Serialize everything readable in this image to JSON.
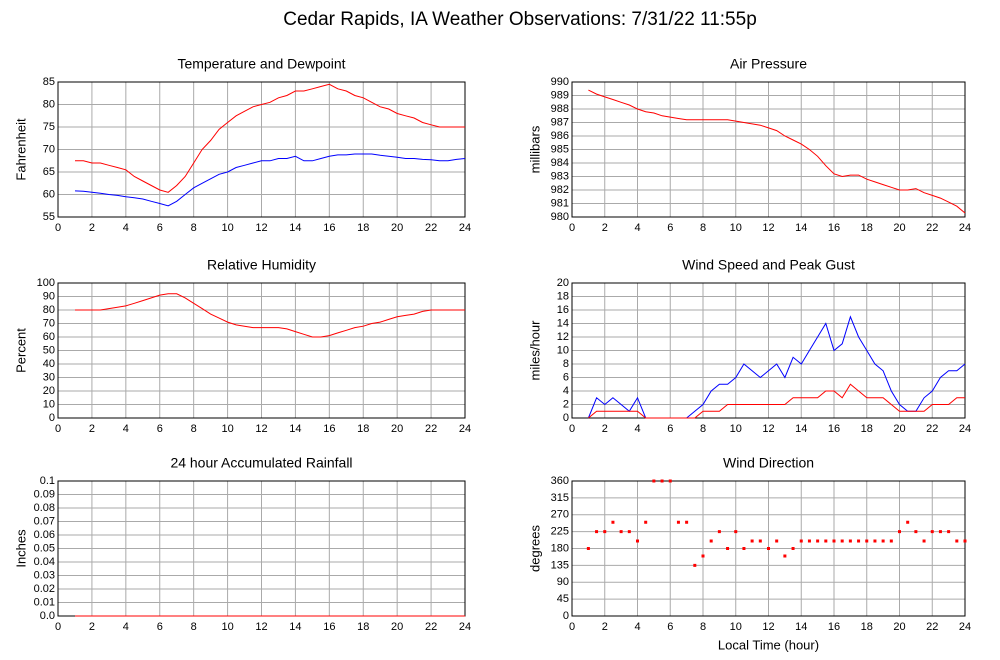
{
  "title": "Cedar Rapids, IA Weather Observations: 7/31/22 11:55p",
  "chart_data": [
    {
      "type": "line",
      "title": "Temperature and Dewpoint",
      "ylabel": "Fahrenheit",
      "xlim": [
        0,
        24
      ],
      "xticks": [
        0,
        2,
        4,
        6,
        8,
        10,
        12,
        14,
        16,
        18,
        20,
        22,
        24
      ],
      "ylim": [
        55,
        85
      ],
      "yticks": [
        55,
        60,
        65,
        70,
        75,
        80,
        85
      ],
      "grid": true,
      "x": [
        1,
        1.5,
        2,
        2.5,
        3,
        3.5,
        4,
        4.5,
        5,
        5.5,
        6,
        6.5,
        7,
        7.5,
        8,
        8.5,
        9,
        9.5,
        10,
        10.5,
        11,
        11.5,
        12,
        12.5,
        13,
        13.5,
        14,
        14.5,
        15,
        15.5,
        16,
        16.5,
        17,
        17.5,
        18,
        18.5,
        19,
        19.5,
        20,
        20.5,
        21,
        21.5,
        22,
        22.5,
        23,
        23.5,
        24
      ],
      "series": [
        {
          "color": "#ff0000",
          "values": [
            67.5,
            67.5,
            67,
            67,
            66.5,
            66,
            65.5,
            64,
            63,
            62,
            61,
            60.5,
            62,
            64,
            67,
            70,
            72,
            74.5,
            76,
            77.5,
            78.5,
            79.5,
            80,
            80.5,
            81.5,
            82,
            83,
            83,
            83.5,
            84,
            84.5,
            83.5,
            83,
            82,
            81.5,
            80.5,
            79.5,
            79,
            78,
            77.5,
            77,
            76,
            75.5,
            75,
            75,
            75,
            75
          ]
        },
        {
          "color": "#0000ff",
          "values": [
            60.8,
            60.7,
            60.5,
            60.3,
            60,
            59.8,
            59.5,
            59.3,
            59,
            58.5,
            58,
            57.5,
            58.5,
            60,
            61.5,
            62.5,
            63.5,
            64.5,
            65,
            66,
            66.5,
            67,
            67.5,
            67.5,
            68,
            68,
            68.5,
            67.5,
            67.5,
            68,
            68.5,
            68.8,
            68.8,
            69,
            69,
            69,
            68.7,
            68.5,
            68.3,
            68,
            68,
            67.8,
            67.7,
            67.5,
            67.5,
            67.8,
            68
          ]
        }
      ]
    },
    {
      "type": "line",
      "title": "Air Pressure",
      "ylabel": "millibars",
      "xlim": [
        0,
        24
      ],
      "xticks": [
        0,
        2,
        4,
        6,
        8,
        10,
        12,
        14,
        16,
        18,
        20,
        22,
        24
      ],
      "ylim": [
        980,
        990
      ],
      "yticks": [
        980,
        981,
        982,
        983,
        984,
        985,
        986,
        987,
        988,
        989,
        990
      ],
      "grid": true,
      "x": [
        1,
        1.5,
        2,
        2.5,
        3,
        3.5,
        4,
        4.5,
        5,
        5.5,
        6,
        6.5,
        7,
        7.5,
        8,
        8.5,
        9,
        9.5,
        10,
        10.5,
        11,
        11.5,
        12,
        12.5,
        13,
        13.5,
        14,
        14.5,
        15,
        15.5,
        16,
        16.5,
        17,
        17.5,
        18,
        18.5,
        19,
        19.5,
        20,
        20.5,
        21,
        21.5,
        22,
        22.5,
        23,
        23.5,
        24
      ],
      "series": [
        {
          "color": "#ff0000",
          "values": [
            989.4,
            989.1,
            988.9,
            988.7,
            988.5,
            988.3,
            988,
            987.8,
            987.7,
            987.5,
            987.4,
            987.3,
            987.2,
            987.2,
            987.2,
            987.2,
            987.2,
            987.2,
            987.1,
            987,
            986.9,
            986.8,
            986.6,
            986.4,
            986,
            985.7,
            985.4,
            985,
            984.5,
            983.8,
            983.2,
            983,
            983.1,
            983.1,
            982.8,
            982.6,
            982.4,
            982.2,
            982,
            982,
            982.1,
            981.8,
            981.6,
            981.4,
            981.1,
            980.8,
            980.3
          ]
        }
      ]
    },
    {
      "type": "line",
      "title": "Relative Humidity",
      "ylabel": "Percent",
      "xlim": [
        0,
        24
      ],
      "xticks": [
        0,
        2,
        4,
        6,
        8,
        10,
        12,
        14,
        16,
        18,
        20,
        22,
        24
      ],
      "ylim": [
        0,
        100
      ],
      "yticks": [
        0,
        10,
        20,
        30,
        40,
        50,
        60,
        70,
        80,
        90,
        100
      ],
      "grid": true,
      "x": [
        1,
        1.5,
        2,
        2.5,
        3,
        3.5,
        4,
        4.5,
        5,
        5.5,
        6,
        6.5,
        7,
        7.5,
        8,
        8.5,
        9,
        9.5,
        10,
        10.5,
        11,
        11.5,
        12,
        12.5,
        13,
        13.5,
        14,
        14.5,
        15,
        15.5,
        16,
        16.5,
        17,
        17.5,
        18,
        18.5,
        19,
        19.5,
        20,
        20.5,
        21,
        21.5,
        22,
        22.5,
        23,
        23.5,
        24
      ],
      "series": [
        {
          "color": "#ff0000",
          "values": [
            80,
            80,
            80,
            80,
            81,
            82,
            83,
            85,
            87,
            89,
            91,
            92,
            92,
            89,
            85,
            81,
            77,
            74,
            71,
            69,
            68,
            67,
            67,
            67,
            67,
            66,
            64,
            62,
            60,
            60,
            61,
            63,
            65,
            67,
            68,
            70,
            71,
            73,
            75,
            76,
            77,
            79,
            80,
            80,
            80,
            80,
            80
          ]
        }
      ]
    },
    {
      "type": "line",
      "title": "Wind Speed and Peak Gust",
      "ylabel": "miles/hour",
      "xlim": [
        0,
        24
      ],
      "xticks": [
        0,
        2,
        4,
        6,
        8,
        10,
        12,
        14,
        16,
        18,
        20,
        22,
        24
      ],
      "ylim": [
        0,
        20
      ],
      "yticks": [
        0,
        2,
        4,
        6,
        8,
        10,
        12,
        14,
        16,
        18,
        20
      ],
      "grid": true,
      "x": [
        1,
        1.5,
        2,
        2.5,
        3,
        3.5,
        4,
        4.5,
        5,
        5.5,
        6,
        6.5,
        7,
        7.5,
        8,
        8.5,
        9,
        9.5,
        10,
        10.5,
        11,
        11.5,
        12,
        12.5,
        13,
        13.5,
        14,
        14.5,
        15,
        15.5,
        16,
        16.5,
        17,
        17.5,
        18,
        18.5,
        19,
        19.5,
        20,
        20.5,
        21,
        21.5,
        22,
        22.5,
        23,
        23.5,
        24
      ],
      "series": [
        {
          "color": "#0000ff",
          "values": [
            0,
            3,
            2,
            3,
            2,
            1,
            3,
            0,
            0,
            0,
            0,
            0,
            0,
            1,
            2,
            4,
            5,
            5,
            6,
            8,
            7,
            6,
            7,
            8,
            6,
            9,
            8,
            10,
            12,
            14,
            10,
            11,
            15,
            12,
            10,
            8,
            7,
            4,
            2,
            1,
            1,
            3,
            4,
            6,
            7,
            7,
            8
          ]
        },
        {
          "color": "#ff0000",
          "values": [
            0,
            1,
            1,
            1,
            1,
            1,
            1,
            0,
            0,
            0,
            0,
            0,
            0,
            0,
            1,
            1,
            1,
            2,
            2,
            2,
            2,
            2,
            2,
            2,
            2,
            3,
            3,
            3,
            3,
            4,
            4,
            3,
            5,
            4,
            3,
            3,
            3,
            2,
            1,
            1,
            1,
            1,
            2,
            2,
            2,
            3,
            3
          ]
        }
      ]
    },
    {
      "type": "line",
      "title": "24 hour Accumulated Rainfall",
      "ylabel": "Inches",
      "xlim": [
        0,
        24
      ],
      "xticks": [
        0,
        2,
        4,
        6,
        8,
        10,
        12,
        14,
        16,
        18,
        20,
        22,
        24
      ],
      "ylim": [
        0,
        0.1
      ],
      "yticks": [
        {
          "value": 0,
          "label": "0.0"
        },
        0.01,
        0.02,
        0.03,
        0.04,
        0.05,
        0.06,
        0.07,
        0.08,
        0.09,
        0.1
      ],
      "grid": true,
      "x": [
        1,
        24
      ],
      "series": [
        {
          "color": "#ff0000",
          "values": [
            0,
            0
          ]
        }
      ]
    },
    {
      "type": "scatter",
      "title": "Wind Direction",
      "ylabel": "degrees",
      "xlabel": "Local Time (hour)",
      "xlim": [
        0,
        24
      ],
      "xticks": [
        0,
        2,
        4,
        6,
        8,
        10,
        12,
        14,
        16,
        18,
        20,
        22,
        24
      ],
      "ylim": [
        0,
        360
      ],
      "yticks": [
        0,
        45,
        90,
        135,
        180,
        225,
        270,
        315,
        360
      ],
      "grid": true,
      "x": [
        1,
        1.5,
        2,
        2.5,
        3,
        3.5,
        4,
        4.5,
        5,
        5.5,
        6,
        6.5,
        7,
        7.5,
        8,
        8.5,
        9,
        9.5,
        10,
        10.5,
        11,
        11.5,
        12,
        12.5,
        13,
        13.5,
        14,
        14.5,
        15,
        15.5,
        16,
        16.5,
        17,
        17.5,
        18,
        18.5,
        19,
        19.5,
        20,
        20.5,
        21,
        21.5,
        22,
        22.5,
        23,
        23.5,
        24
      ],
      "series": [
        {
          "color": "#ff0000",
          "values": [
            180,
            225,
            225,
            250,
            225,
            225,
            200,
            250,
            360,
            360,
            360,
            250,
            250,
            135,
            160,
            200,
            225,
            180,
            225,
            180,
            200,
            200,
            180,
            200,
            160,
            180,
            200,
            200,
            200,
            200,
            200,
            200,
            200,
            200,
            200,
            200,
            200,
            200,
            225,
            250,
            225,
            200,
            225,
            225,
            225,
            200,
            200
          ]
        }
      ]
    }
  ]
}
